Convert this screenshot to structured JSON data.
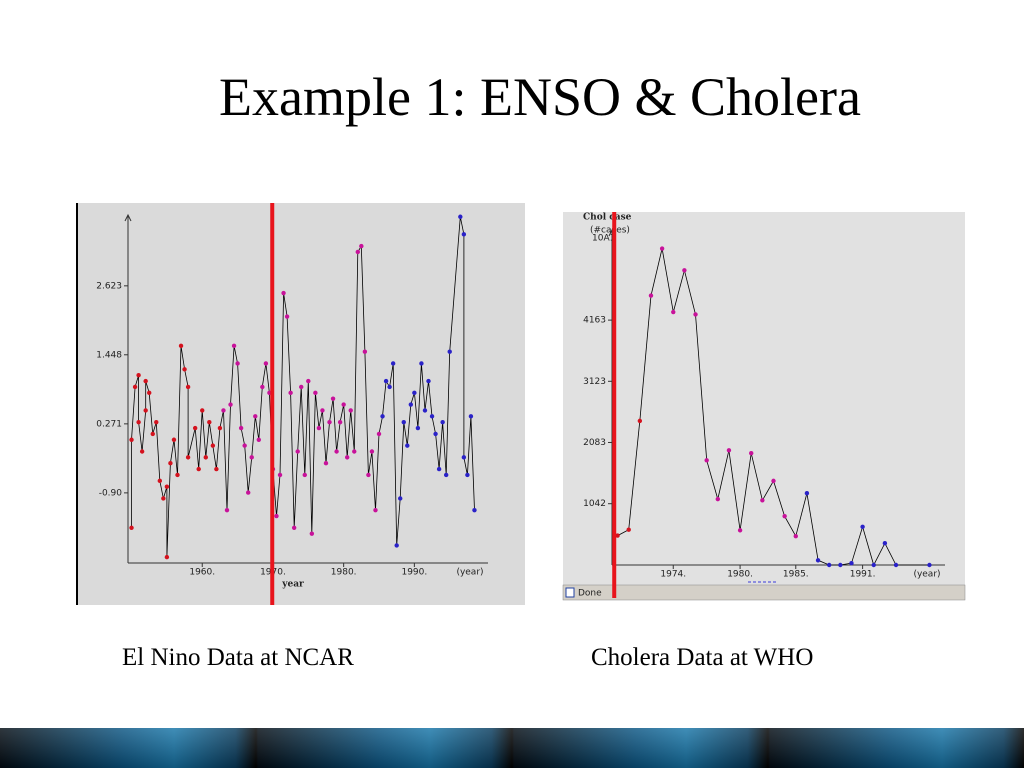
{
  "title": "Example 1: ENSO & Cholera",
  "chart_data": [
    {
      "type": "line",
      "caption": "El Nino Data at NCAR",
      "xlabel": "year",
      "x_unit_label": "(year)",
      "xlim": [
        1949.5,
        1999
      ],
      "ylim": [
        -2.1,
        3.83
      ],
      "xticks": [
        {
          "value": 1960,
          "label": "1960."
        },
        {
          "value": 1970,
          "label": "1970."
        },
        {
          "value": 1980,
          "label": "1980."
        },
        {
          "value": 1990,
          "label": "1990."
        }
      ],
      "yticks": [
        {
          "value": -0.905,
          "label": "-0.90"
        },
        0.271,
        1.448,
        2.623
      ],
      "marker_x": 1969.9,
      "marker_color": "#e8141c",
      "line_color": "#000000",
      "connect_series": true,
      "series": [
        {
          "color": "#d4121e",
          "x": [
            1950,
            1950,
            1950.5,
            1951,
            1951,
            1951.5,
            1952,
            1952,
            1952.5,
            1953,
            1953.5,
            1954,
            1954.5,
            1955,
            1955,
            1955.5,
            1956,
            1956.5,
            1957,
            1957.5,
            1958,
            1958,
            1959,
            1959.5,
            1960,
            1960.5,
            1961,
            1961.5,
            1962,
            1962.5
          ],
          "values": [
            -1.5,
            0.0,
            0.9,
            1.1,
            0.3,
            -0.2,
            0.5,
            1.0,
            0.8,
            0.1,
            0.3,
            -0.7,
            -1.0,
            -0.8,
            -2.0,
            -0.4,
            0.0,
            -0.6,
            1.6,
            1.2,
            0.9,
            -0.3,
            0.2,
            -0.5,
            0.5,
            -0.3,
            0.3,
            -0.1,
            -0.5,
            0.2
          ]
        },
        {
          "color": "#c8129a",
          "x": [
            1963,
            1963.5,
            1964,
            1964.5,
            1965,
            1965.5,
            1966,
            1966.5,
            1967,
            1967.5,
            1968,
            1968.5,
            1969,
            1969.5,
            1970,
            1970.5,
            1971,
            1971.5,
            1972,
            1972.5,
            1973,
            1973.5,
            1974,
            1974.5,
            1975,
            1975.5,
            1976,
            1976.5,
            1977,
            1977.5,
            1978,
            1978.5,
            1979,
            1979.5,
            1980,
            1980.5,
            1981,
            1981.5,
            1982,
            1982.5,
            1983,
            1983.5,
            1984,
            1984.5,
            1985
          ],
          "values": [
            0.5,
            -1.2,
            0.6,
            1.6,
            1.3,
            0.2,
            -0.1,
            -0.9,
            -0.3,
            0.4,
            0.0,
            0.9,
            1.3,
            0.8,
            -0.5,
            -1.3,
            -0.6,
            2.5,
            2.1,
            0.8,
            -1.5,
            -0.2,
            0.9,
            -0.6,
            1.0,
            -1.6,
            0.8,
            0.2,
            0.5,
            -0.4,
            0.3,
            0.7,
            -0.2,
            0.3,
            0.6,
            -0.3,
            0.5,
            -0.2,
            3.2,
            3.3,
            1.5,
            -0.6,
            -0.2,
            -1.2,
            0.1
          ]
        },
        {
          "color": "#2a22c8",
          "x": [
            1985.5,
            1986,
            1986.5,
            1987,
            1987.5,
            1988,
            1988.5,
            1989,
            1989.5,
            1990,
            1990.5,
            1991,
            1991.5,
            1992,
            1992.5,
            1993,
            1993.5,
            1994,
            1994.5,
            1995,
            1996.5,
            1997,
            1997,
            1997.5,
            1998,
            1998.5
          ],
          "values": [
            0.4,
            1.0,
            0.9,
            1.3,
            -1.8,
            -1.0,
            0.3,
            -0.1,
            0.6,
            0.8,
            0.2,
            1.3,
            0.5,
            1.0,
            0.4,
            0.1,
            -0.5,
            0.3,
            -0.6,
            1.5,
            3.8,
            3.5,
            -0.3,
            -0.6,
            0.4,
            -1.2
          ]
        }
      ]
    },
    {
      "type": "line",
      "caption": "Cholera Data at WHO",
      "title": "Chol case",
      "ylabel": "(#cases)",
      "y_unit": "10A1",
      "x_unit_label": "(year)",
      "status": "Done",
      "xlim": [
        1968.5,
        1997.5
      ],
      "ylim": [
        0,
        5950
      ],
      "xticks": [
        {
          "value": 1974,
          "label": "1974."
        },
        {
          "value": 1980,
          "label": "1980."
        },
        {
          "value": 1985,
          "label": "1985."
        },
        {
          "value": 1991,
          "label": "1991."
        }
      ],
      "yticks": [
        1042,
        2083,
        3123,
        4163
      ],
      "marker_x": 1968.7,
      "marker_color": "#e8141c",
      "line_color": "#000000",
      "connect_series": true,
      "series": [
        {
          "color": "#d4121e",
          "x": [
            1969,
            1970,
            1971
          ],
          "values": [
            500,
            600,
            2450
          ]
        },
        {
          "color": "#c8129a",
          "x": [
            1972,
            1973,
            1974,
            1975,
            1976,
            1977,
            1978,
            1979,
            1980,
            1981,
            1982,
            1983,
            1984,
            1985
          ],
          "values": [
            4580,
            5380,
            4300,
            5010,
            4260,
            1780,
            1120,
            1950,
            590,
            1900,
            1100,
            1430,
            830,
            490
          ]
        },
        {
          "color": "#2a22c8",
          "x": [
            1986,
            1987,
            1988,
            1989,
            1990,
            1991,
            1992,
            1993,
            1994,
            1997
          ],
          "values": [
            1220,
            80,
            0,
            0,
            30,
            650,
            0,
            370,
            0,
            0
          ]
        }
      ]
    }
  ]
}
